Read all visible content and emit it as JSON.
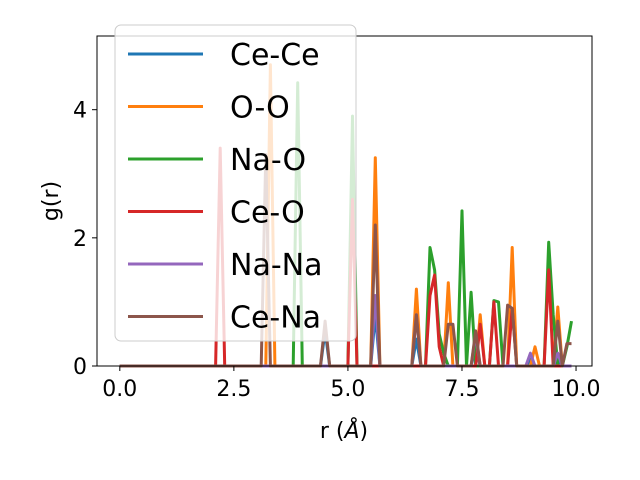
{
  "chart_data": {
    "type": "line",
    "xlabel": "r (",
    "xlabel_unit": "Å",
    "xlabel_close": ")",
    "ylabel": "g(r)",
    "xlim": [
      -0.5,
      10.35
    ],
    "ylim": [
      0,
      5.15
    ],
    "xticks": [
      0.0,
      2.5,
      5.0,
      7.5,
      10.0
    ],
    "xtick_labels": [
      "0.0",
      "2.5",
      "5.0",
      "7.5",
      "10.0"
    ],
    "yticks": [
      0,
      2,
      4
    ],
    "ytick_labels": [
      "0",
      "2",
      "4"
    ],
    "grid": false,
    "legend_position": "top-left",
    "x": [
      0.0,
      0.1,
      0.2,
      0.3,
      0.4,
      0.5,
      0.6,
      0.7,
      0.8,
      0.9,
      1.0,
      1.1,
      1.2,
      1.3,
      1.4,
      1.5,
      1.6,
      1.7,
      1.8,
      1.9,
      2.0,
      2.1,
      2.2,
      2.3,
      2.4,
      2.5,
      2.6,
      2.7,
      2.8,
      2.9,
      3.0,
      3.1,
      3.2,
      3.3,
      3.4,
      3.5,
      3.6,
      3.7,
      3.8,
      3.9,
      4.0,
      4.1,
      4.2,
      4.3,
      4.4,
      4.5,
      4.6,
      4.7,
      4.8,
      4.9,
      5.0,
      5.1,
      5.2,
      5.3,
      5.4,
      5.5,
      5.6,
      5.7,
      5.8,
      5.9,
      6.0,
      6.1,
      6.2,
      6.3,
      6.4,
      6.5,
      6.6,
      6.7,
      6.8,
      6.9,
      7.0,
      7.1,
      7.2,
      7.3,
      7.4,
      7.5,
      7.6,
      7.7,
      7.8,
      7.9,
      8.0,
      8.1,
      8.2,
      8.3,
      8.4,
      8.5,
      8.6,
      8.7,
      8.8,
      8.9,
      9.0,
      9.1,
      9.2,
      9.3,
      9.4,
      9.5,
      9.6,
      9.7,
      9.8,
      9.9
    ],
    "series": [
      {
        "name": "Ce-Ce",
        "color": "#1f77b4",
        "values": [
          0,
          0,
          0,
          0,
          0,
          0,
          0,
          0,
          0,
          0,
          0,
          0,
          0,
          0,
          0,
          0,
          0,
          0,
          0,
          0,
          0,
          0,
          0,
          0,
          0,
          0,
          0,
          0,
          0,
          0,
          0,
          0,
          0,
          0,
          0,
          0,
          0,
          0,
          0,
          0,
          0,
          0,
          0,
          0,
          0,
          0.55,
          0,
          0,
          0,
          0,
          0,
          0,
          0,
          0,
          0,
          0,
          0.8,
          0,
          0,
          0,
          0,
          0,
          0,
          0,
          0,
          0.42,
          0,
          0,
          0,
          0,
          0,
          0,
          0,
          0,
          0,
          0,
          0,
          0,
          0.3,
          0,
          0,
          0,
          0,
          0,
          0,
          0,
          0,
          0,
          0,
          0,
          0.1,
          0,
          0,
          0,
          0,
          0,
          0.1,
          0,
          0,
          0
        ]
      },
      {
        "name": "O-O",
        "color": "#ff7f0e",
        "values": [
          0,
          0,
          0,
          0,
          0,
          0,
          0,
          0,
          0,
          0,
          0,
          0,
          0,
          0,
          0,
          0,
          0,
          0,
          0,
          0,
          0,
          0,
          0,
          0,
          0,
          0,
          0,
          0,
          0,
          0,
          0,
          0,
          0,
          4.7,
          0,
          0,
          0,
          0,
          0,
          0,
          0,
          0,
          0,
          0,
          0,
          0,
          0,
          0,
          0,
          0,
          0,
          0,
          0,
          0,
          0,
          0,
          3.25,
          0,
          0,
          0,
          0,
          0,
          0,
          0,
          0,
          1.2,
          0,
          0,
          0,
          0,
          0,
          0,
          1.3,
          0,
          0,
          0,
          0,
          0,
          0,
          0.8,
          0,
          0,
          0,
          0,
          0,
          0,
          1.85,
          0,
          0,
          0,
          0,
          0.3,
          0,
          0,
          0,
          0,
          0.92,
          0,
          0,
          0
        ]
      },
      {
        "name": "Na-O",
        "color": "#2ca02c",
        "values": [
          0,
          0,
          0,
          0,
          0,
          0,
          0,
          0,
          0,
          0,
          0,
          0,
          0,
          0,
          0,
          0,
          0,
          0,
          0,
          0,
          0,
          0,
          0,
          0,
          0,
          0,
          0,
          0,
          0,
          0,
          0,
          0,
          0,
          0,
          0,
          0,
          0,
          0,
          0,
          4.42,
          0,
          0,
          0,
          0,
          0,
          0,
          0,
          0,
          0,
          0,
          0,
          3.9,
          0,
          0,
          0,
          0,
          0,
          0,
          0,
          0,
          0,
          0,
          0,
          0,
          0,
          0,
          0,
          0,
          1.85,
          1.5,
          0.5,
          0.2,
          0,
          0,
          0,
          2.42,
          0,
          1.15,
          0,
          0,
          0,
          0,
          1.02,
          1.0,
          0,
          0,
          0,
          0,
          0,
          0,
          0,
          0,
          0,
          0,
          1.93,
          0.8,
          0,
          0,
          0.3,
          0.7
        ]
      },
      {
        "name": "Ce-O",
        "color": "#d62728",
        "values": [
          0,
          0,
          0,
          0,
          0,
          0,
          0,
          0,
          0,
          0,
          0,
          0,
          0,
          0,
          0,
          0,
          0,
          0,
          0,
          0,
          0,
          0,
          3.4,
          0,
          0,
          0,
          0,
          0,
          0,
          0,
          0,
          0,
          0,
          0,
          0,
          0,
          0,
          0,
          0,
          0,
          0,
          0,
          0,
          0,
          0,
          0,
          0,
          0,
          0,
          0,
          0,
          2.6,
          0,
          0,
          0,
          0,
          0,
          0,
          0,
          0,
          0,
          0,
          0,
          0,
          0,
          0,
          0,
          0,
          1.1,
          1.42,
          0.3,
          0,
          0,
          0,
          0,
          0,
          0,
          0,
          0,
          0.65,
          0,
          0,
          1.0,
          0,
          0,
          0,
          0.9,
          0,
          0,
          0,
          0,
          0,
          0,
          0,
          1.5,
          0,
          0,
          0,
          0,
          0
        ]
      },
      {
        "name": "Na-Na",
        "color": "#9467bd",
        "values": [
          0,
          0,
          0,
          0,
          0,
          0,
          0,
          0,
          0,
          0,
          0,
          0,
          0,
          0,
          0,
          0,
          0,
          0,
          0,
          0,
          0,
          0,
          0,
          0,
          0,
          0,
          0,
          0,
          0,
          0,
          0,
          0,
          0,
          0,
          0,
          0,
          0,
          0,
          0,
          0,
          0,
          0,
          0,
          0,
          0,
          0,
          0,
          0,
          0,
          0,
          0,
          0,
          0,
          0,
          0,
          0,
          1.1,
          0,
          0,
          0,
          0,
          0,
          0,
          0,
          0,
          0.8,
          0,
          0,
          0,
          0,
          0,
          0,
          0,
          0,
          0,
          0,
          0,
          0,
          0.5,
          0,
          0,
          0,
          0,
          0,
          0,
          0,
          0,
          0,
          0,
          0,
          0.2,
          0,
          0,
          0,
          0,
          0,
          0.2,
          0,
          0,
          0
        ]
      },
      {
        "name": "Ce-Na",
        "color": "#8c564b",
        "values": [
          0,
          0,
          0,
          0,
          0,
          0,
          0,
          0,
          0,
          0,
          0,
          0,
          0,
          0,
          0,
          0,
          0,
          0,
          0,
          0,
          0,
          0,
          0,
          0,
          0,
          0,
          0,
          0,
          0,
          0,
          0,
          0,
          3.3,
          0,
          0,
          0,
          0,
          0,
          0,
          0,
          0,
          0,
          0,
          0,
          0,
          0.7,
          0,
          0,
          0,
          0,
          0,
          0,
          0,
          0,
          0,
          0,
          2.2,
          0,
          0,
          0,
          0,
          0,
          0,
          0,
          0,
          0.8,
          0,
          0,
          0,
          0,
          0,
          0,
          0.65,
          0.65,
          0,
          0,
          0,
          0,
          0.55,
          0,
          0,
          0,
          0,
          0,
          0,
          0.95,
          0.9,
          0,
          0,
          0,
          0,
          0,
          0,
          0,
          0,
          0,
          0.7,
          0,
          0.35,
          0.35
        ]
      }
    ]
  }
}
